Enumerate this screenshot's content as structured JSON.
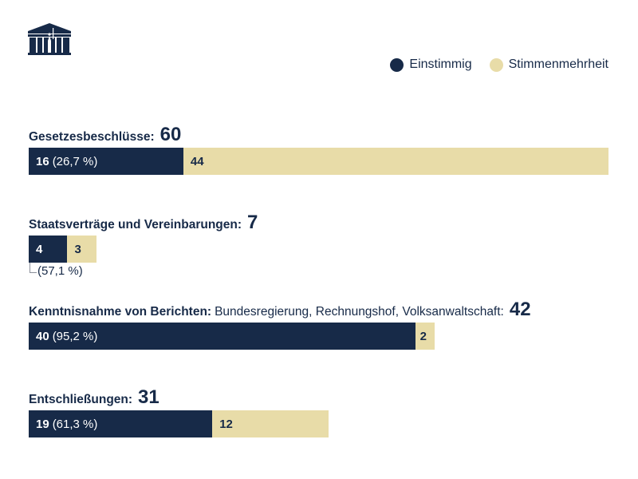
{
  "logo": {
    "icon": "parliament-building-icon"
  },
  "legend": {
    "items": [
      {
        "label": "Einstimmig",
        "color": "#172a48"
      },
      {
        "label": "Stimmenmehrheit",
        "color": "#e8dca8"
      }
    ]
  },
  "chart_data": {
    "type": "bar",
    "orientation": "horizontal-stacked",
    "title": "",
    "legend_position": "top-right",
    "series": [
      {
        "name": "Einstimmig",
        "color": "#172a48",
        "values": [
          16,
          4,
          40,
          19
        ]
      },
      {
        "name": "Stimmenmehrheit",
        "color": "#e8dca8",
        "values": [
          44,
          3,
          2,
          12
        ]
      }
    ],
    "categories": [
      "Gesetzesbeschlüsse",
      "Staatsverträge und Vereinbarungen",
      "Kenntnisnahme von Berichten",
      "Entschließungen"
    ],
    "groups": [
      {
        "label": "Gesetzesbeschlüsse:",
        "sublabel": "",
        "total": "60",
        "a": 16,
        "b": 44,
        "a_label": "16",
        "a_pct": "(26,7 %)",
        "b_label": "44",
        "pct_outside": false
      },
      {
        "label": "Staatsverträge und Vereinbarungen:",
        "sublabel": "",
        "total": "7",
        "a": 4,
        "b": 3,
        "a_label": "4",
        "a_pct": "(57,1 %)",
        "b_label": "3",
        "pct_outside": true
      },
      {
        "label": "Kenntnisnahme von Berichten:",
        "sublabel": "Bundesregierung, Rechnungshof, Volksanwaltschaft:",
        "total": "42",
        "a": 40,
        "b": 2,
        "a_label": "40",
        "a_pct": "(95,2 %)",
        "b_label": "2",
        "pct_outside": false
      },
      {
        "label": "Entschließungen:",
        "sublabel": "",
        "total": "31",
        "a": 19,
        "b": 12,
        "a_label": "19",
        "a_pct": "(61,3 %)",
        "b_label": "12",
        "pct_outside": false
      }
    ],
    "xmax": 60
  }
}
